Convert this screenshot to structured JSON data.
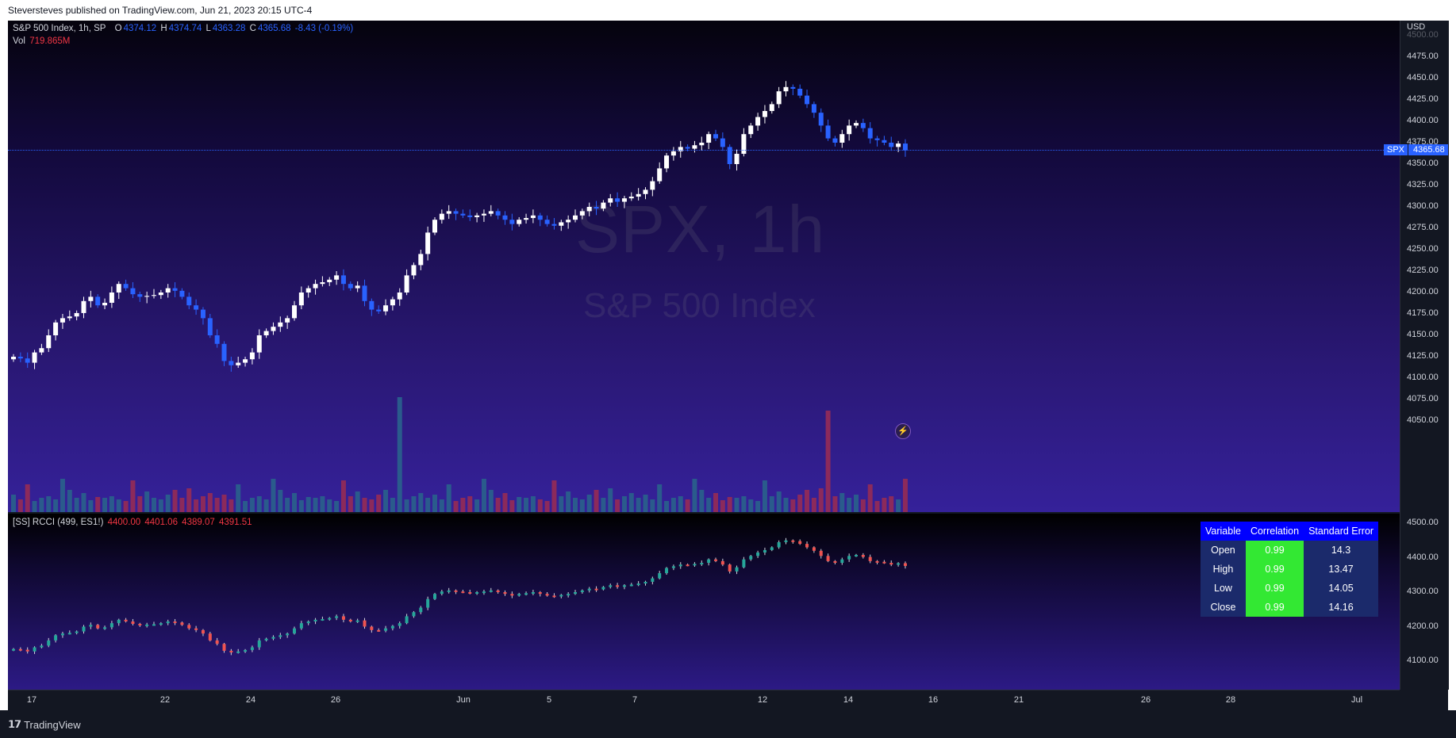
{
  "publisher_line": "Steversteves published on TradingView.com, Jun 21, 2023 20:15 UTC-4",
  "main_legend": {
    "symbol": "S&P 500 Index, 1h, SP",
    "o_label": "O",
    "o": "4374.12",
    "h_label": "H",
    "h": "4374.74",
    "l_label": "L",
    "l": "4363.28",
    "c_label": "C",
    "c": "4365.68",
    "change": "-8.43 (-0.19%)",
    "vol_label": "Vol",
    "vol": "719.865M"
  },
  "watermark": {
    "ticker": "SPX, 1h",
    "name": "S&P 500 Index"
  },
  "price_axis": {
    "currency": "USD",
    "ticks": [
      "4500.00",
      "4475.00",
      "4450.00",
      "4425.00",
      "4400.00",
      "4375.00",
      "4350.00",
      "4325.00",
      "4300.00",
      "4275.00",
      "4250.00",
      "4225.00",
      "4200.00",
      "4175.00",
      "4150.00",
      "4125.00",
      "4100.00",
      "4075.00",
      "4050.00"
    ],
    "last_symbol": "SPX",
    "last_price": "4365.68"
  },
  "lower_legend": {
    "name": "[SS] RCCI (499, ES1!)",
    "v1": "4400.00",
    "v2": "4401.06",
    "v3": "4389.07",
    "v4": "4391.51"
  },
  "lower_axis": {
    "ticks": [
      "4500.00",
      "4400.00",
      "4300.00",
      "4200.00",
      "4100.00"
    ]
  },
  "stats_table": {
    "headers": [
      "Variable",
      "Correlation",
      "Standard Error"
    ],
    "rows": [
      {
        "variable": "Open",
        "correlation": "0.99",
        "se": "14.3"
      },
      {
        "variable": "High",
        "correlation": "0.99",
        "se": "13.47"
      },
      {
        "variable": "Low",
        "correlation": "0.99",
        "se": "14.05"
      },
      {
        "variable": "Close",
        "correlation": "0.99",
        "se": "14.16"
      }
    ]
  },
  "time_axis": [
    "17",
    "22",
    "24",
    "26",
    "Jun",
    "5",
    "7",
    "12",
    "14",
    "16",
    "21",
    "26",
    "28",
    "Jul"
  ],
  "footer": {
    "brand": "TradingView",
    "logo_icon": "tradingview-logo-icon"
  },
  "colors": {
    "up_candle": "#ffffff",
    "down_candle": "#2962ff",
    "vol_up": "#2a5b8c",
    "vol_down": "#8c2a5b",
    "rcci_up": "#26a69a",
    "rcci_down": "#ef5350",
    "accent": "#2962ff"
  },
  "chart_data": {
    "type": "candlestick",
    "unit": "USD",
    "closes": [
      4125,
      4123,
      4118,
      4130,
      4135,
      4150,
      4165,
      4170,
      4172,
      4176,
      4190,
      4195,
      4185,
      4188,
      4200,
      4210,
      4205,
      4198,
      4195,
      4196,
      4197,
      4200,
      4205,
      4202,
      4195,
      4185,
      4180,
      4170,
      4150,
      4140,
      4120,
      4115,
      4118,
      4122,
      4130,
      4150,
      4155,
      4160,
      4165,
      4170,
      4185,
      4200,
      4205,
      4210,
      4212,
      4215,
      4220,
      4210,
      4205,
      4208,
      4190,
      4180,
      4178,
      4185,
      4192,
      4200,
      4220,
      4232,
      4245,
      4270,
      4285,
      4292,
      4295,
      4292,
      4290,
      4288,
      4290,
      4292,
      4295,
      4290,
      4285,
      4280,
      4285,
      4287,
      4290,
      4285,
      4280,
      4278,
      4282,
      4285,
      4290,
      4295,
      4300,
      4298,
      4305,
      4310,
      4306,
      4310,
      4312,
      4315,
      4320,
      4330,
      4345,
      4360,
      4365,
      4370,
      4368,
      4372,
      4375,
      4385,
      4380,
      4370,
      4350,
      4362,
      4385,
      4395,
      4405,
      4412,
      4420,
      4435,
      4440,
      4438,
      4430,
      4420,
      4410,
      4395,
      4380,
      4375,
      4385,
      4395,
      4398,
      4392,
      4380,
      4378,
      4375,
      4370,
      4374,
      4366
    ]
  }
}
